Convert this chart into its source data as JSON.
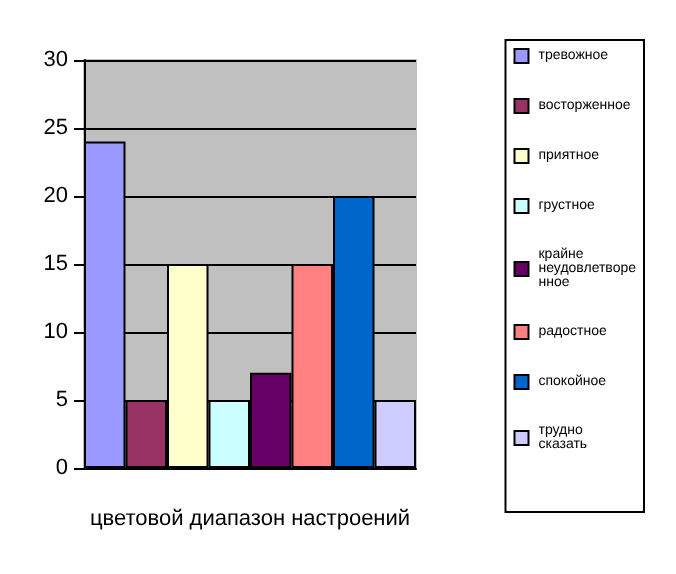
{
  "chart_data": {
    "type": "bar",
    "xlabel": "цветовой диапазон настроений",
    "categories": [
      null,
      null,
      null,
      null,
      null,
      null,
      null,
      null
    ],
    "series": [
      {
        "name": "тревожное",
        "color": "#9999ff",
        "values": [
          24,
          null,
          null,
          null,
          null,
          null,
          null,
          null
        ]
      },
      {
        "name": "восторженное",
        "color": "#993366",
        "values": [
          null,
          5,
          null,
          null,
          null,
          null,
          null,
          null
        ]
      },
      {
        "name": "приятное",
        "color": "#ffffcc",
        "values": [
          null,
          null,
          15,
          null,
          null,
          null,
          null,
          null
        ]
      },
      {
        "name": "грустное",
        "color": "#ccffff",
        "values": [
          null,
          null,
          null,
          5,
          null,
          null,
          null,
          null
        ]
      },
      {
        "name": "крайне неудовлетворенное",
        "color": "#660066",
        "values": [
          null,
          null,
          null,
          null,
          7,
          null,
          null,
          null
        ]
      },
      {
        "name": "радостное",
        "color": "#ff8080",
        "values": [
          null,
          null,
          null,
          null,
          null,
          15,
          null,
          null
        ]
      },
      {
        "name": "спокойное",
        "color": "#0066cc",
        "values": [
          null,
          null,
          null,
          null,
          null,
          null,
          20,
          null
        ]
      },
      {
        "name": "трудно сказать",
        "color": "#ccccff",
        "values": [
          null,
          null,
          null,
          null,
          null,
          null,
          null,
          5
        ]
      }
    ],
    "ylim": [
      0,
      30
    ],
    "yticks": [
      0,
      5,
      10,
      15,
      20,
      25,
      30
    ],
    "grid": "y",
    "legend": "right"
  }
}
